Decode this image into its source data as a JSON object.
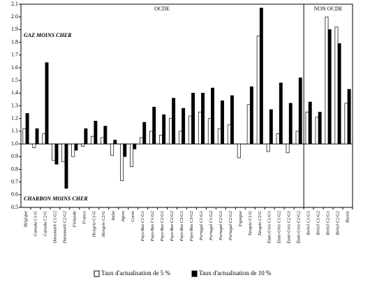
{
  "chart_data": {
    "type": "bar",
    "categories": [
      "Belgique",
      "Canada C1/G",
      "Canada C2/G",
      "Danemark C1/G2",
      "Danemark C2/G2",
      "Finlande",
      "France",
      "Hongrie C1/G",
      "Hongrie C2/G",
      "Italie",
      "Japon",
      "Corée",
      "Pays-Bas C1/G1",
      "Pays-Bas C1/G2",
      "Pays-Bas C2/G1",
      "Pays-Bas C2/G2",
      "Pays-Bas C3/G1",
      "Pays-Bas C3/G2",
      "Portugal C1/G1",
      "Portugal C1/G2",
      "Portugal C2/G1",
      "Portugal C2/G2",
      "Espagne",
      "Turquie C1/G",
      "Turquie C2/G",
      "États-Unis C1/G1",
      "États-Unis C1/G2",
      "États-Unis C2/G1",
      "États-Unis C2/G2",
      "Brésil C1/G1",
      "Brésil C1/G2",
      "Brésil C2/G1",
      "Brésil C2/G2",
      "Russie"
    ],
    "series": [
      {
        "name": "Taux d'actualisation de 5 %",
        "color": "#ffffff",
        "values": [
          1.12,
          0.97,
          1.08,
          0.87,
          0.86,
          0.9,
          0.98,
          1.06,
          1.05,
          0.91,
          0.71,
          0.82,
          1.05,
          1.1,
          1.07,
          1.2,
          1.1,
          1.22,
          1.25,
          1.2,
          1.12,
          1.15,
          0.89,
          1.31,
          1.85,
          0.94,
          1.08,
          0.93,
          1.1,
          1.25,
          1.21,
          2.0,
          1.92,
          1.32
        ]
      },
      {
        "name": "Taux d'actualisation de 10 %",
        "color": "#000000",
        "values": [
          1.24,
          1.12,
          1.64,
          0.84,
          0.65,
          0.95,
          1.12,
          1.18,
          1.14,
          1.03,
          0.9,
          0.96,
          1.17,
          1.29,
          1.23,
          1.36,
          1.28,
          1.4,
          1.4,
          1.44,
          1.34,
          1.38,
          1.0,
          1.45,
          2.07,
          1.27,
          1.48,
          1.32,
          1.52,
          1.33,
          1.25,
          1.9,
          1.79,
          1.43
        ]
      }
    ],
    "ylim": [
      0.5,
      2.1
    ],
    "yticks": [
      0.5,
      0.6,
      0.7,
      0.8,
      0.9,
      {
        "value": 1,
        "label": "1.0"
      },
      1.1,
      1.2,
      1.3,
      1.4,
      1.5,
      1.6,
      1.7,
      1.8,
      1.9,
      {
        "value": 2,
        "label": "2.0"
      },
      2.1
    ],
    "baseline": 1,
    "annotations": [
      "OCDE",
      "NON OCDE",
      "GAZ MOINS CHER",
      "CHARBON MOINS CHER"
    ],
    "legend": "bottom"
  }
}
